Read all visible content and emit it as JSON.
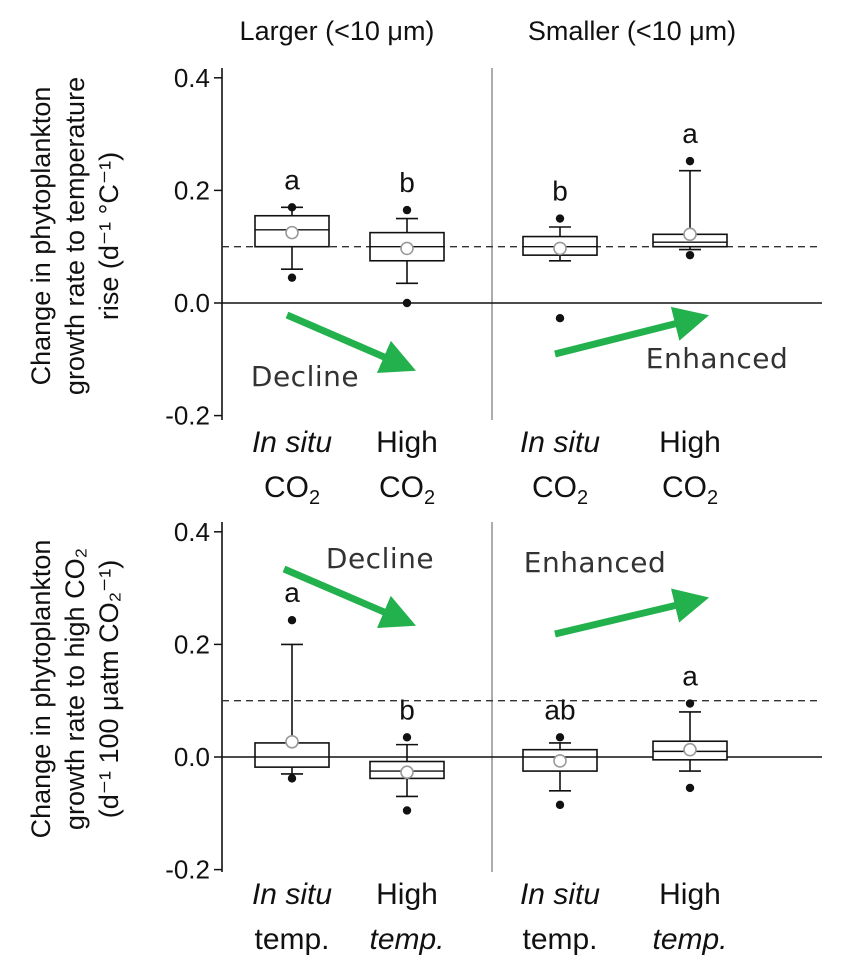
{
  "chart_data": [
    {
      "type": "box",
      "panel": "top",
      "group_titles": [
        "Larger (<10 μm)",
        "Smaller  (<10 μm)"
      ],
      "ylabel": [
        "Change in phytoplankton",
        "growth rate to temperature",
        "rise (d⁻¹ °C⁻¹)"
      ],
      "ylim": [
        -0.2,
        0.4
      ],
      "yticks": [
        "0.4",
        "0.2",
        "0.0",
        "-0.2"
      ],
      "ytick_values": [
        0.4,
        0.2,
        0.0,
        -0.2
      ],
      "reference_lines": {
        "solid": 0.0,
        "dashed": 0.1
      },
      "categories": [
        {
          "line1": "In situ",
          "line2": "CO",
          "sub": "2",
          "italic_line": 1
        },
        {
          "line1": "High",
          "line2": "CO",
          "sub": "2",
          "italic_line": 0
        },
        {
          "line1": "In situ",
          "line2": "CO",
          "sub": "2",
          "italic_line": 1
        },
        {
          "line1": "High",
          "line2": "CO",
          "sub": "2",
          "italic_line": 0
        }
      ],
      "boxes": [
        {
          "group": 0,
          "whisker_low": 0.06,
          "q1": 0.1,
          "median": 0.13,
          "q3": 0.155,
          "whisker_high": 0.17,
          "mean": 0.125,
          "outliers": [
            0.17,
            0.045
          ],
          "letter": "a"
        },
        {
          "group": 0,
          "whisker_low": 0.035,
          "q1": 0.075,
          "median": 0.1,
          "q3": 0.125,
          "whisker_high": 0.15,
          "mean": 0.097,
          "outliers": [
            0.165,
            0.0
          ],
          "letter": "b"
        },
        {
          "group": 1,
          "whisker_low": 0.075,
          "q1": 0.085,
          "median": 0.1,
          "q3": 0.118,
          "whisker_high": 0.135,
          "mean": 0.097,
          "outliers": [
            0.15,
            -0.027
          ],
          "letter": "b"
        },
        {
          "group": 1,
          "whisker_low": 0.095,
          "q1": 0.1,
          "median": 0.108,
          "q3": 0.122,
          "whisker_high": 0.235,
          "mean": 0.122,
          "outliers": [
            0.252,
            0.085
          ],
          "letter": "a"
        }
      ],
      "trends": [
        {
          "label": "Decline",
          "direction": "down"
        },
        {
          "label": "Enhanced",
          "direction": "up"
        }
      ],
      "colors": {
        "arrow": "#22b14c",
        "box": "#111111",
        "mean_marker": "#9a9a9a"
      }
    },
    {
      "type": "box",
      "panel": "bottom",
      "ylabel": [
        "Change in phytoplankton",
        "growth rate  to high CO₂",
        "(d⁻¹ 100 μatm CO₂⁻¹)"
      ],
      "ylim": [
        -0.2,
        0.4
      ],
      "yticks": [
        "0.4",
        "0.2",
        "0.0",
        "-0.2"
      ],
      "ytick_values": [
        0.4,
        0.2,
        0.0,
        -0.2
      ],
      "reference_lines": {
        "solid": 0.0,
        "dashed": 0.1
      },
      "categories": [
        {
          "line1": "In situ",
          "line2": "temp.",
          "sub": "",
          "italic_line": 1
        },
        {
          "line1": "High",
          "line2": "temp.",
          "sub": "",
          "italic_line": 2
        },
        {
          "line1": "In situ",
          "line2": "temp.",
          "sub": "",
          "italic_line": 1
        },
        {
          "line1": "High",
          "line2": "temp.",
          "sub": "",
          "italic_line": 2
        }
      ],
      "boxes": [
        {
          "group": 0,
          "whisker_low": -0.03,
          "q1": -0.018,
          "median": 0.0,
          "q3": 0.025,
          "whisker_high": 0.2,
          "mean": 0.027,
          "outliers": [
            0.243,
            -0.038
          ],
          "letter": "a"
        },
        {
          "group": 0,
          "whisker_low": -0.07,
          "q1": -0.038,
          "median": -0.025,
          "q3": -0.008,
          "whisker_high": 0.022,
          "mean": -0.027,
          "outliers": [
            0.035,
            -0.095
          ],
          "letter": "b"
        },
        {
          "group": 1,
          "whisker_low": -0.06,
          "q1": -0.025,
          "median": 0.0,
          "q3": 0.013,
          "whisker_high": 0.025,
          "mean": -0.007,
          "outliers": [
            0.035,
            -0.085
          ],
          "letter": "ab"
        },
        {
          "group": 1,
          "whisker_low": -0.025,
          "q1": -0.005,
          "median": 0.01,
          "q3": 0.028,
          "whisker_high": 0.08,
          "mean": 0.013,
          "outliers": [
            0.095,
            -0.055
          ],
          "letter": "a"
        }
      ],
      "trends": [
        {
          "label": "Decline",
          "direction": "down"
        },
        {
          "label": "Enhanced",
          "direction": "up"
        }
      ],
      "colors": {
        "arrow": "#22b14c",
        "box": "#111111",
        "mean_marker": "#9a9a9a"
      }
    }
  ]
}
